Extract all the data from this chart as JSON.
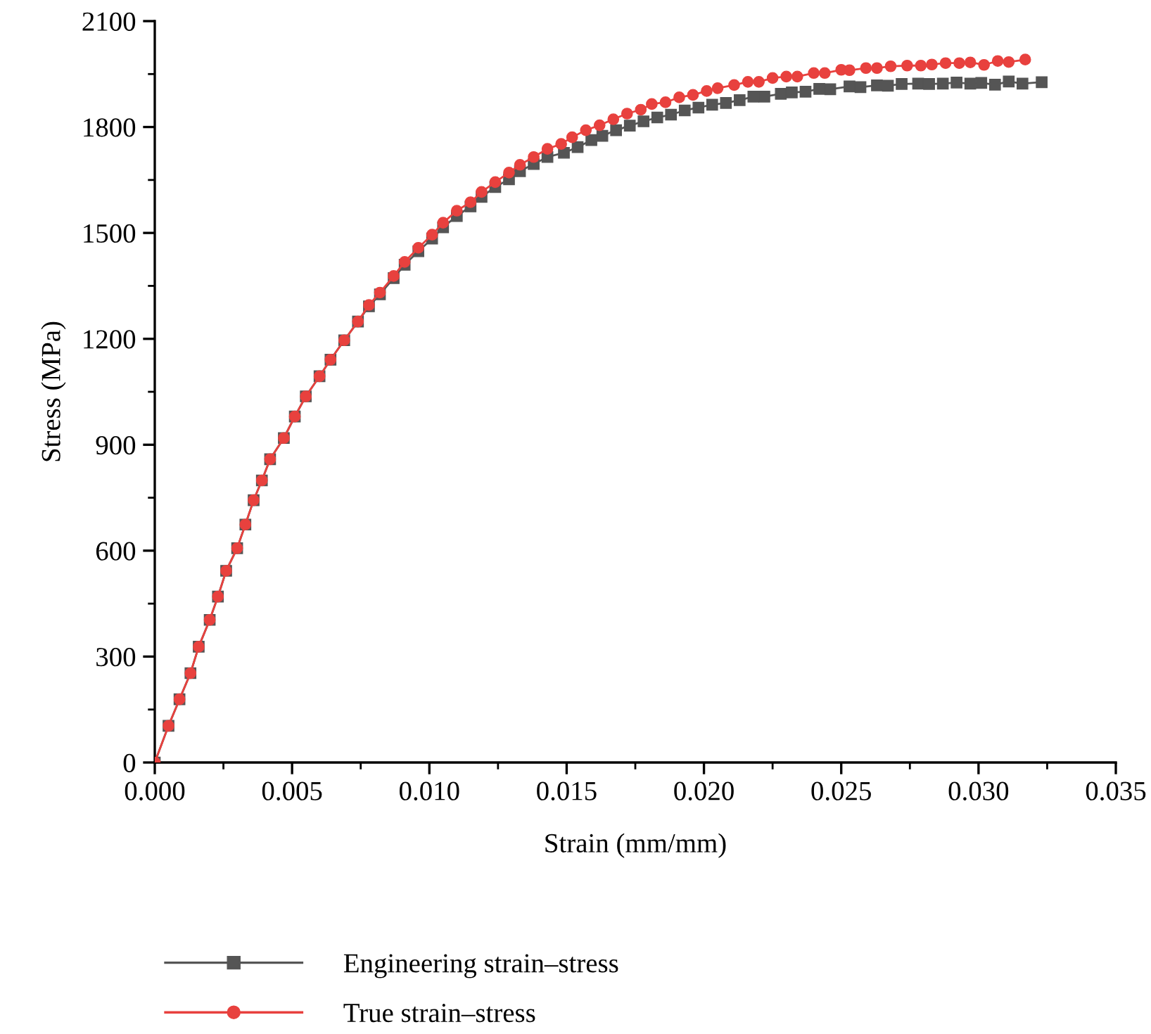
{
  "chart_data": {
    "type": "line",
    "xlabel": "Strain (mm/mm)",
    "ylabel": "Stress (MPa)",
    "xlim": [
      0,
      0.035
    ],
    "xticks": [
      {
        "value": 0,
        "label": "0.000"
      },
      {
        "value": 0.005,
        "label": "0.005"
      },
      {
        "value": 0.01,
        "label": "0.010"
      },
      {
        "value": 0.015,
        "label": "0.015"
      },
      {
        "value": 0.02,
        "label": "0.020"
      },
      {
        "value": 0.025,
        "label": "0.025"
      },
      {
        "value": 0.03,
        "label": "0.030"
      },
      {
        "value": 0.035,
        "label": "0.035"
      }
    ],
    "ylim": [
      0,
      2100
    ],
    "yticks": [
      0,
      300,
      600,
      900,
      1200,
      1500,
      1800,
      2100
    ],
    "grid": false,
    "legend": "bottom left",
    "line_style": "solid",
    "series": [
      {
        "name": "Engineering strain–stress",
        "color": "#555555",
        "marker": "square",
        "x": [
          0,
          0.0005,
          0.0009,
          0.0013,
          0.0016,
          0.002,
          0.0023,
          0.0026,
          0.003,
          0.0033,
          0.0036,
          0.0039,
          0.0042,
          0.0047,
          0.0051,
          0.0055,
          0.006,
          0.0064,
          0.0069,
          0.0074,
          0.0078,
          0.0082,
          0.0087,
          0.0091,
          0.0096,
          0.0101,
          0.0105,
          0.011,
          0.0115,
          0.0119,
          0.0124,
          0.0129,
          0.0133,
          0.0138,
          0.0143,
          0.0149,
          0.0154,
          0.0159,
          0.0163,
          0.0168,
          0.0173,
          0.0178,
          0.0183,
          0.0188,
          0.0193,
          0.0198,
          0.0203,
          0.0208,
          0.0213,
          0.0218,
          0.0222,
          0.0228,
          0.0232,
          0.0237,
          0.0242,
          0.0246,
          0.0253,
          0.0257,
          0.0263,
          0.0267,
          0.0272,
          0.0278,
          0.0282,
          0.0287,
          0.0292,
          0.0297,
          0.0301,
          0.0306,
          0.0311,
          0.0316,
          0.0323
        ],
        "values": [
          0,
          104,
          179,
          253,
          328,
          404,
          470,
          543,
          607,
          674,
          743,
          799,
          859,
          919,
          980,
          1037,
          1094,
          1141,
          1196,
          1249,
          1292,
          1326,
          1372,
          1410,
          1448,
          1484,
          1516,
          1548,
          1575,
          1602,
          1630,
          1652,
          1675,
          1695,
          1715,
          1727,
          1743,
          1763,
          1775,
          1791,
          1804,
          1816,
          1827,
          1835,
          1847,
          1855,
          1863,
          1868,
          1876,
          1886,
          1886,
          1894,
          1898,
          1900,
          1908,
          1907,
          1915,
          1913,
          1918,
          1917,
          1922,
          1923,
          1922,
          1923,
          1926,
          1923,
          1925,
          1920,
          1929,
          1923,
          1927
        ]
      },
      {
        "name": "True strain–stress",
        "color": "#e8413e",
        "marker": "circle",
        "x": [
          0,
          0.0005,
          0.0009,
          0.0013,
          0.0016,
          0.002,
          0.0023,
          0.0026,
          0.003,
          0.0033,
          0.0036,
          0.0039,
          0.0042,
          0.0047,
          0.0051,
          0.0055,
          0.006,
          0.0064,
          0.0069,
          0.0074,
          0.0078,
          0.0082,
          0.0087,
          0.0091,
          0.0096,
          0.0101,
          0.0105,
          0.011,
          0.0115,
          0.0119,
          0.0124,
          0.0129,
          0.0133,
          0.0138,
          0.0143,
          0.0148,
          0.0152,
          0.0157,
          0.0162,
          0.0167,
          0.0172,
          0.0177,
          0.0181,
          0.0186,
          0.0191,
          0.0196,
          0.0201,
          0.0205,
          0.0211,
          0.0216,
          0.022,
          0.0225,
          0.023,
          0.0234,
          0.024,
          0.0244,
          0.025,
          0.0253,
          0.0259,
          0.0263,
          0.0268,
          0.0274,
          0.0279,
          0.0283,
          0.0288,
          0.0293,
          0.0297,
          0.0302,
          0.0307,
          0.0311,
          0.0317
        ],
        "values": [
          0,
          104,
          179,
          253,
          328,
          404,
          470,
          543,
          607,
          674,
          743,
          799,
          859,
          919,
          980,
          1037,
          1094,
          1141,
          1196,
          1249,
          1296,
          1331,
          1378,
          1418,
          1458,
          1495,
          1529,
          1563,
          1587,
          1616,
          1644,
          1671,
          1693,
          1715,
          1738,
          1752,
          1771,
          1791,
          1805,
          1822,
          1838,
          1849,
          1865,
          1870,
          1884,
          1891,
          1902,
          1910,
          1919,
          1928,
          1928,
          1939,
          1943,
          1943,
          1953,
          1953,
          1962,
          1961,
          1967,
          1967,
          1972,
          1974,
          1974,
          1977,
          1981,
          1981,
          1983,
          1976,
          1987,
          1984,
          1991
        ]
      }
    ]
  }
}
